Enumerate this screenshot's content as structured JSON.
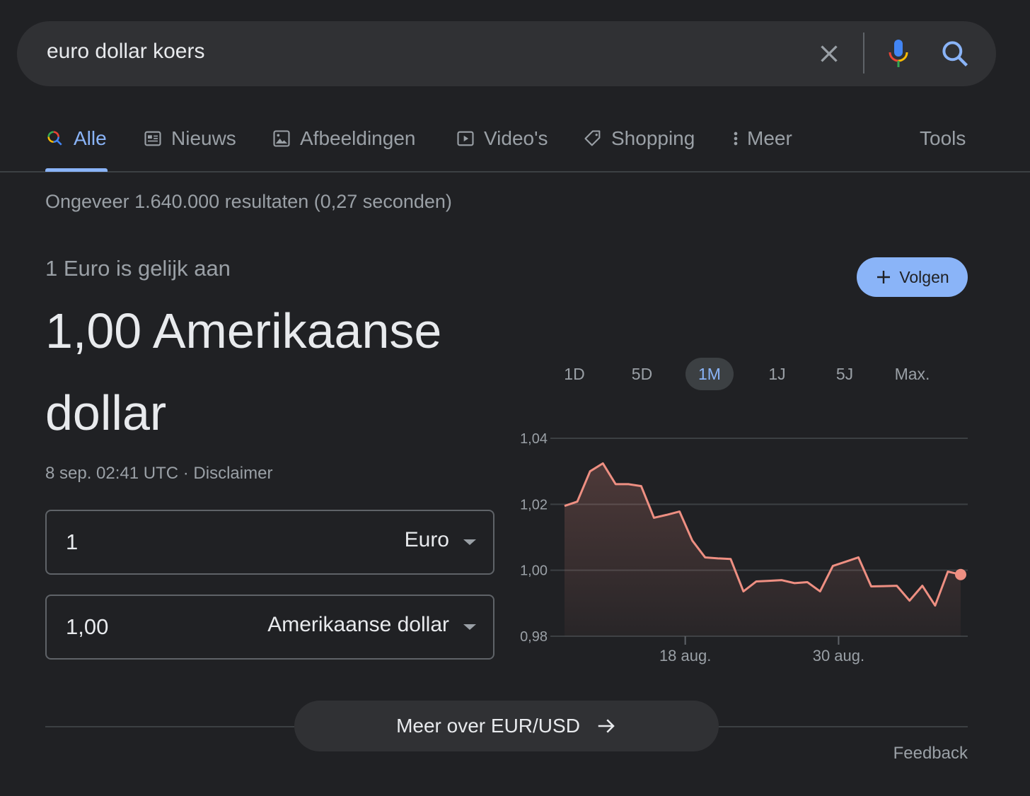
{
  "search": {
    "query": "euro dollar koers"
  },
  "tabs": [
    {
      "label": "Alle",
      "icon": "search-icon"
    },
    {
      "label": "Nieuws",
      "icon": "news-icon"
    },
    {
      "label": "Afbeeldingen",
      "icon": "image-icon"
    },
    {
      "label": "Video's",
      "icon": "video-icon"
    },
    {
      "label": "Shopping",
      "icon": "tag-icon"
    },
    {
      "label": "Meer",
      "icon": "more-vert-icon"
    }
  ],
  "tools_label": "Tools",
  "stats": "Ongeveer 1.640.000 resultaten (0,27 seconden)",
  "converter": {
    "equals_label": "1 Euro is gelijk aan",
    "result": "1,00 Amerikaanse dollar",
    "timestamp": "8 sep. 02:41 UTC · Disclaimer",
    "follow_label": "Volgen",
    "from_value": "1",
    "from_currency": "Euro",
    "to_value": "1,00",
    "to_currency": "Amerikaanse dollar"
  },
  "ranges": [
    "1D",
    "5D",
    "1M",
    "1J",
    "5J",
    "Max."
  ],
  "active_range": "1M",
  "colors": {
    "accent": "#8ab4f8",
    "line": "#ee8f82",
    "background": "#202124"
  },
  "chart_data": {
    "type": "area",
    "x": [
      "2022-08-08",
      "2022-08-09",
      "2022-08-10",
      "2022-08-11",
      "2022-08-12",
      "2022-08-13",
      "2022-08-14",
      "2022-08-15",
      "2022-08-16",
      "2022-08-17",
      "2022-08-18",
      "2022-08-19",
      "2022-08-20",
      "2022-08-21",
      "2022-08-22",
      "2022-08-23",
      "2022-08-24",
      "2022-08-25",
      "2022-08-26",
      "2022-08-27",
      "2022-08-28",
      "2022-08-29",
      "2022-08-30",
      "2022-08-31",
      "2022-09-01",
      "2022-09-02",
      "2022-09-03",
      "2022-09-04",
      "2022-09-05",
      "2022-09-06",
      "2022-09-07",
      "2022-09-08"
    ],
    "values": [
      1.0195,
      1.0208,
      1.03,
      1.0324,
      1.0261,
      1.0261,
      1.0255,
      1.0159,
      1.0168,
      1.0178,
      1.009,
      1.0039,
      1.0036,
      1.0034,
      0.9936,
      0.9966,
      0.9968,
      0.997,
      0.9961,
      0.9964,
      0.9936,
      1.0013,
      1.0026,
      1.0039,
      0.9951,
      0.9952,
      0.9953,
      0.9908,
      0.9953,
      0.9893,
      0.9996,
      0.9987
    ],
    "y_ticks": [
      "1,04",
      "1,02",
      "1,00",
      "0,98"
    ],
    "y_tick_values": [
      1.04,
      1.02,
      1.0,
      0.98
    ],
    "ylim": [
      0.98,
      1.04
    ],
    "x_ticks": [
      {
        "label": "18 aug.",
        "date": "2022-08-18"
      },
      {
        "label": "30 aug.",
        "date": "2022-08-30"
      }
    ],
    "grid": true
  },
  "more_button": "Meer over EUR/USD",
  "feedback": "Feedback"
}
